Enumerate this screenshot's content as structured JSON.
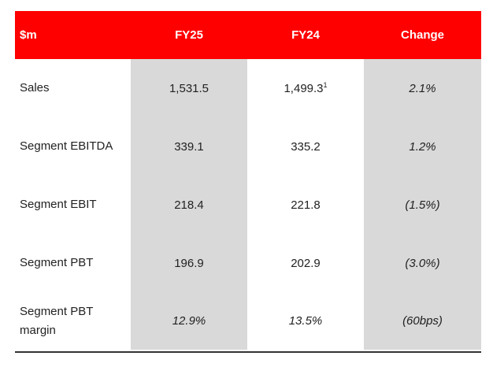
{
  "table": {
    "headers": [
      "$m",
      "FY25",
      "FY24",
      "Change"
    ],
    "rows": [
      {
        "label": "Sales",
        "fy25": "1,531.5",
        "fy24": "1,499.3",
        "fy24_footnote": "1",
        "change": "2.1%"
      },
      {
        "label": "Segment EBITDA",
        "fy25": "339.1",
        "fy24": "335.2",
        "change": "1.2%"
      },
      {
        "label": "Segment EBIT",
        "fy25": "218.4",
        "fy24": "221.8",
        "change": "(1.5%)"
      },
      {
        "label": "Segment PBT",
        "fy25": "196.9",
        "fy24": "202.9",
        "change": "(3.0%)"
      },
      {
        "label_line1": "Segment PBT",
        "label_line2": "margin",
        "fy25": "12.9%",
        "fy24": "13.5%",
        "change": "(60bps)"
      }
    ]
  },
  "colors": {
    "header_bg": "#ff0000",
    "header_text": "#ffffff",
    "shaded_column": "#d9d9d9"
  }
}
